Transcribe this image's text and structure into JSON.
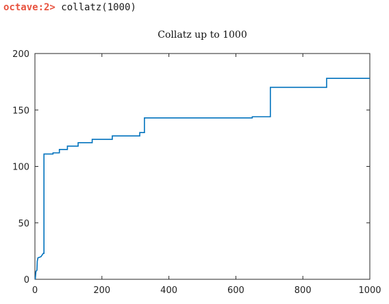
{
  "console": {
    "prompt": "octave:2>",
    "command": "collatz(1000)"
  },
  "chart_data": {
    "type": "line",
    "title": "Collatz up to 1000",
    "xlabel": "",
    "ylabel": "",
    "xlim": [
      0,
      1000
    ],
    "ylim": [
      0,
      200
    ],
    "xticks": [
      0,
      200,
      400,
      600,
      800,
      1000
    ],
    "yticks": [
      0,
      50,
      100,
      150,
      200
    ],
    "grid": false,
    "line_color": "#0072bd",
    "series": [
      {
        "x": [
          1,
          3,
          6,
          7,
          9,
          18,
          25,
          27,
          27,
          54,
          54,
          73,
          73,
          97,
          97,
          129,
          129,
          171,
          171,
          231,
          231,
          313,
          313,
          327,
          327,
          649,
          649,
          703,
          703,
          871,
          871,
          1000
        ],
        "y": [
          0,
          7,
          8,
          16,
          19,
          20,
          23,
          23,
          111,
          111,
          112,
          112,
          115,
          115,
          118,
          118,
          121,
          121,
          124,
          124,
          127,
          127,
          130,
          130,
          143,
          143,
          144,
          144,
          170,
          170,
          178,
          178
        ]
      }
    ]
  }
}
